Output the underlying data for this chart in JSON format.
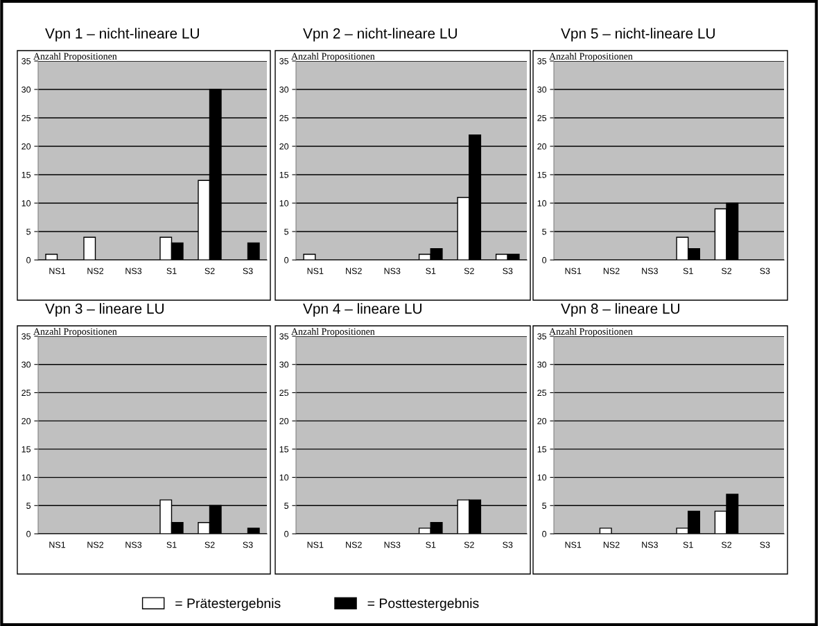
{
  "chart_data": [
    {
      "type": "bar",
      "title": "Vpn 1 – nicht-lineare LU",
      "ylabel": "Anzahl Propositionen",
      "categories": [
        "NS1",
        "NS2",
        "NS3",
        "S1",
        "S2",
        "S3"
      ],
      "ylim": [
        0,
        35
      ],
      "yticks": [
        0,
        5,
        10,
        15,
        20,
        25,
        30,
        35
      ],
      "grid": "y",
      "legend": "bottom",
      "series": [
        {
          "name": "= Prätestergebnis",
          "color": "#ffffff",
          "values": [
            1,
            4,
            0,
            4,
            14,
            0
          ]
        },
        {
          "name": "= Posttestergebnis",
          "color": "#000000",
          "values": [
            0,
            0,
            0,
            3,
            30,
            3
          ]
        }
      ]
    },
    {
      "type": "bar",
      "title": "Vpn 2 – nicht-lineare LU",
      "ylabel": "Anzahl Propositionen",
      "categories": [
        "NS1",
        "NS2",
        "NS3",
        "S1",
        "S2",
        "S3"
      ],
      "ylim": [
        0,
        35
      ],
      "yticks": [
        0,
        5,
        10,
        15,
        20,
        25,
        30,
        35
      ],
      "grid": "y",
      "series": [
        {
          "color": "#ffffff",
          "values": [
            1,
            0,
            0,
            1,
            11,
            1
          ]
        },
        {
          "color": "#000000",
          "values": [
            0,
            0,
            0,
            2,
            22,
            1
          ]
        }
      ]
    },
    {
      "type": "bar",
      "title": "Vpn 5 – nicht-lineare LU",
      "ylabel": "Anzahl Propositionen",
      "categories": [
        "NS1",
        "NS2",
        "NS3",
        "S1",
        "S2",
        "S3"
      ],
      "ylim": [
        0,
        35
      ],
      "yticks": [
        0,
        5,
        10,
        15,
        20,
        25,
        30,
        35
      ],
      "grid": "y",
      "series": [
        {
          "color": "#ffffff",
          "values": [
            0,
            0,
            0,
            4,
            9,
            0
          ]
        },
        {
          "color": "#000000",
          "values": [
            0,
            0,
            0,
            2,
            10,
            0
          ]
        }
      ]
    },
    {
      "type": "bar",
      "title": "Vpn 3 – lineare LU",
      "ylabel": "Anzahl Propositionen",
      "categories": [
        "NS1",
        "NS2",
        "NS3",
        "S1",
        "S2",
        "S3"
      ],
      "ylim": [
        0,
        35
      ],
      "yticks": [
        0,
        5,
        10,
        15,
        20,
        25,
        30,
        35
      ],
      "grid": "y",
      "series": [
        {
          "color": "#ffffff",
          "values": [
            0,
            0,
            0,
            6,
            2,
            0
          ]
        },
        {
          "color": "#000000",
          "values": [
            0,
            0,
            0,
            2,
            5,
            1
          ]
        }
      ]
    },
    {
      "type": "bar",
      "title": "Vpn 4 – lineare LU",
      "ylabel": "Anzahl Propositionen",
      "categories": [
        "NS1",
        "NS2",
        "NS3",
        "S1",
        "S2",
        "S3"
      ],
      "ylim": [
        0,
        35
      ],
      "yticks": [
        0,
        5,
        10,
        15,
        20,
        25,
        30,
        35
      ],
      "grid": "y",
      "series": [
        {
          "color": "#ffffff",
          "values": [
            0,
            0,
            0,
            1,
            6,
            0
          ]
        },
        {
          "color": "#000000",
          "values": [
            0,
            0,
            0,
            2,
            6,
            0
          ]
        }
      ]
    },
    {
      "type": "bar",
      "title": "Vpn 8 – lineare LU",
      "ylabel": "Anzahl Propositionen",
      "categories": [
        "NS1",
        "NS2",
        "NS3",
        "S1",
        "S2",
        "S3"
      ],
      "ylim": [
        0,
        35
      ],
      "yticks": [
        0,
        5,
        10,
        15,
        20,
        25,
        30,
        35
      ],
      "grid": "y",
      "series": [
        {
          "color": "#ffffff",
          "values": [
            0,
            1,
            0,
            1,
            4,
            0
          ]
        },
        {
          "color": "#000000",
          "values": [
            0,
            0,
            0,
            4,
            7,
            0
          ]
        }
      ]
    }
  ]
}
